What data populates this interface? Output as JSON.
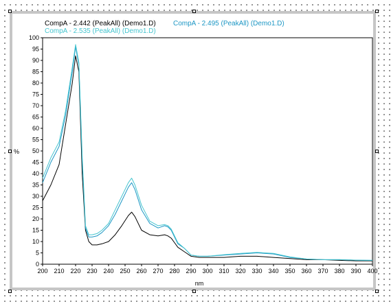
{
  "chart_data": {
    "type": "line",
    "xlabel": "nm",
    "ylabel": "%",
    "xlim": [
      200,
      400
    ],
    "ylim": [
      0,
      100
    ],
    "xticks": [
      200,
      210,
      220,
      230,
      240,
      250,
      260,
      270,
      280,
      290,
      300,
      310,
      320,
      330,
      340,
      350,
      360,
      370,
      380,
      390,
      400
    ],
    "yticks": [
      0,
      5,
      10,
      15,
      20,
      25,
      30,
      35,
      40,
      45,
      50,
      55,
      60,
      65,
      70,
      75,
      80,
      85,
      90,
      95,
      100
    ],
    "grid": false,
    "legend_position": "top-left",
    "series": [
      {
        "name": "CompA - 2.442 (PeakAll)  (Demo1.D)",
        "color": "#000000",
        "x": [
          200,
          205,
          210,
          214,
          218,
          220,
          222,
          224,
          226,
          228,
          230,
          233,
          236,
          240,
          244,
          248,
          252,
          254,
          256,
          260,
          265,
          270,
          274,
          276,
          278,
          282,
          286,
          290,
          295,
          300,
          310,
          320,
          330,
          340,
          350,
          360,
          370,
          380,
          390,
          400
        ],
        "y": [
          28,
          35,
          44,
          62,
          80,
          92,
          85,
          40,
          15,
          10,
          8.5,
          8.5,
          9,
          10,
          13,
          17,
          21.5,
          23,
          21,
          15,
          13,
          12.5,
          13,
          12.5,
          11.5,
          7.5,
          5.5,
          3.5,
          3,
          3,
          3,
          3.5,
          3.5,
          3,
          2.5,
          2,
          2,
          1.7,
          1.5,
          1.5
        ]
      },
      {
        "name": "CompA - 2.495 (PeakAll)  (Demo1.D)",
        "color": "#1b96c4",
        "x": [
          200,
          205,
          210,
          214,
          218,
          220,
          222,
          224,
          226,
          228,
          230,
          233,
          236,
          240,
          244,
          248,
          252,
          254,
          256,
          260,
          265,
          270,
          274,
          276,
          278,
          282,
          286,
          290,
          295,
          300,
          310,
          320,
          330,
          340,
          350,
          360,
          370,
          380,
          390,
          400
        ],
        "y": [
          36,
          45,
          52,
          66,
          85,
          96,
          88,
          46,
          16,
          12,
          12,
          12.5,
          14,
          17,
          22,
          28,
          34,
          36,
          33,
          24,
          18,
          16,
          17,
          16.5,
          15,
          9,
          7,
          4,
          3.5,
          3.5,
          4,
          4.5,
          5,
          4.5,
          3,
          2.3,
          2,
          2,
          1.8,
          1.7
        ]
      },
      {
        "name": "CompA - 2.535 (PeakAll)  (Demo1.D)",
        "color": "#45c5cf",
        "x": [
          200,
          205,
          210,
          214,
          218,
          220,
          222,
          224,
          226,
          228,
          230,
          233,
          236,
          240,
          244,
          248,
          252,
          254,
          256,
          260,
          265,
          270,
          274,
          276,
          278,
          282,
          286,
          290,
          295,
          300,
          310,
          320,
          330,
          340,
          350,
          360,
          370,
          380,
          390,
          400
        ],
        "y": [
          38,
          47,
          54,
          68,
          87,
          97,
          89,
          48,
          17,
          13,
          13,
          13.5,
          15,
          18,
          24,
          30,
          36,
          38,
          35,
          26,
          19,
          17,
          17.5,
          17,
          15.5,
          9.5,
          7,
          4,
          3.5,
          3.5,
          4.2,
          4.8,
          5.2,
          4.8,
          3.2,
          2.3,
          2,
          2,
          1.8,
          1.7
        ]
      }
    ]
  }
}
